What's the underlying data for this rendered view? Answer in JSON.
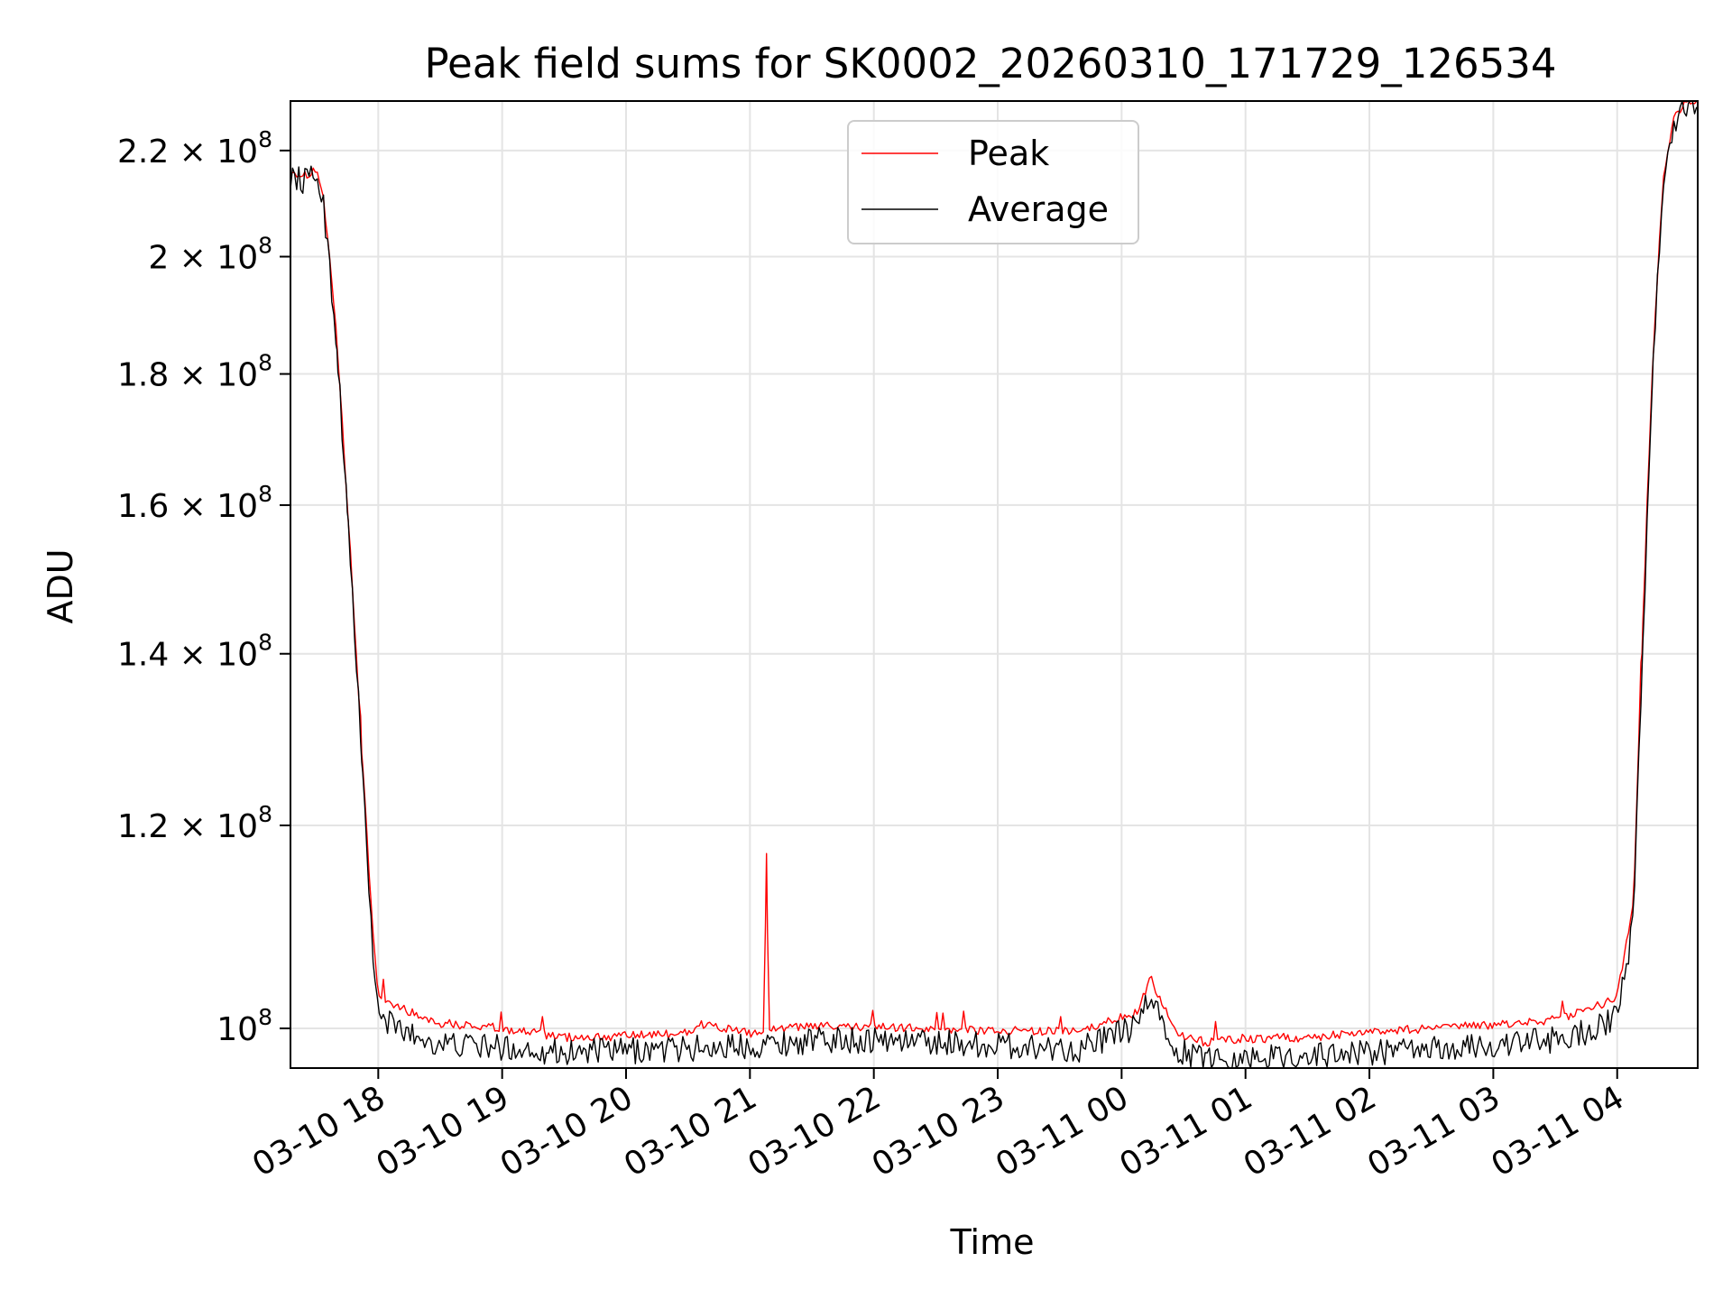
{
  "chart_data": {
    "type": "line",
    "title": "Peak field sums for SK0002_20260310_171729_126534",
    "xlabel": "Time",
    "ylabel": "ADU",
    "y_scale": "log",
    "ylim": [
      96500000,
      230000000
    ],
    "xlim": [
      "2026-03-10 17:17:29",
      "2026-03-11 04:39:00"
    ],
    "grid": true,
    "legend_position": "top-center",
    "x_ticks": [
      {
        "value": "2026-03-10 18:00",
        "label": "03-10 18"
      },
      {
        "value": "2026-03-10 19:00",
        "label": "03-10 19"
      },
      {
        "value": "2026-03-10 20:00",
        "label": "03-10 20"
      },
      {
        "value": "2026-03-10 21:00",
        "label": "03-10 21"
      },
      {
        "value": "2026-03-10 22:00",
        "label": "03-10 22"
      },
      {
        "value": "2026-03-10 23:00",
        "label": "03-10 23"
      },
      {
        "value": "2026-03-11 00:00",
        "label": "03-11 00"
      },
      {
        "value": "2026-03-11 01:00",
        "label": "03-11 01"
      },
      {
        "value": "2026-03-11 02:00",
        "label": "03-11 02"
      },
      {
        "value": "2026-03-11 03:00",
        "label": "03-11 03"
      },
      {
        "value": "2026-03-11 04:00",
        "label": "03-11 04"
      }
    ],
    "y_ticks": [
      {
        "value": 100000000,
        "mantissa": "",
        "exp": "8"
      },
      {
        "value": 120000000,
        "mantissa": "1.2",
        "exp": "8"
      },
      {
        "value": 140000000,
        "mantissa": "1.4",
        "exp": "8"
      },
      {
        "value": 160000000,
        "mantissa": "1.6",
        "exp": "8"
      },
      {
        "value": 180000000,
        "mantissa": "1.8",
        "exp": "8"
      },
      {
        "value": 200000000,
        "mantissa": "2",
        "exp": "8"
      },
      {
        "value": 220000000,
        "mantissa": "2.2",
        "exp": "8"
      }
    ],
    "series": [
      {
        "name": "Peak",
        "color": "#ff0000",
        "x": [
          "2026-03-10 17:17:29",
          "2026-03-10 17:25",
          "2026-03-10 17:30",
          "2026-03-10 17:33",
          "2026-03-10 17:35",
          "2026-03-10 17:40",
          "2026-03-10 17:45",
          "2026-03-10 17:52",
          "2026-03-10 17:57",
          "2026-03-10 18:00",
          "2026-03-10 18:15",
          "2026-03-10 18:30",
          "2026-03-10 19:00",
          "2026-03-10 19:30",
          "2026-03-10 20:00",
          "2026-03-10 20:30",
          "2026-03-10 20:37",
          "2026-03-10 21:00",
          "2026-03-10 21:07",
          "2026-03-10 21:08",
          "2026-03-10 21:09",
          "2026-03-10 21:30",
          "2026-03-10 22:00",
          "2026-03-10 22:30",
          "2026-03-10 23:00",
          "2026-03-10 23:40",
          "2026-03-11 00:08",
          "2026-03-11 00:14",
          "2026-03-11 00:20",
          "2026-03-11 00:28",
          "2026-03-11 00:40",
          "2026-03-11 01:00",
          "2026-03-11 01:30",
          "2026-03-11 02:00",
          "2026-03-11 02:30",
          "2026-03-11 03:00",
          "2026-03-11 03:30",
          "2026-03-11 03:50",
          "2026-03-11 04:00",
          "2026-03-11 04:08",
          "2026-03-11 04:12",
          "2026-03-11 04:17",
          "2026-03-11 04:22",
          "2026-03-11 04:27",
          "2026-03-11 04:32",
          "2026-03-11 04:39"
        ],
        "values": [
          216000000,
          215000000,
          216500000,
          212000000,
          205000000,
          185000000,
          160000000,
          128000000,
          110000000,
          103000000,
          101500000,
          100500000,
          100000000,
          99200000,
          99300000,
          99600000,
          100400000,
          99500000,
          99800000,
          117000000,
          99900000,
          100200000,
          100100000,
          100000000,
          99800000,
          99700000,
          101500000,
          104600000,
          102000000,
          99500000,
          98800000,
          99100000,
          99200000,
          99700000,
          100000000,
          100300000,
          100800000,
          102000000,
          103000000,
          112000000,
          140000000,
          180000000,
          213000000,
          226000000,
          229000000,
          230000000
        ]
      },
      {
        "name": "Average",
        "color": "#000000",
        "x": [
          "2026-03-10 17:17:29",
          "2026-03-10 17:25",
          "2026-03-10 17:30",
          "2026-03-10 17:33",
          "2026-03-10 17:35",
          "2026-03-10 17:40",
          "2026-03-10 17:45",
          "2026-03-10 17:52",
          "2026-03-10 17:57",
          "2026-03-10 18:00",
          "2026-03-10 18:15",
          "2026-03-10 18:30",
          "2026-03-10 19:00",
          "2026-03-10 19:30",
          "2026-03-10 20:00",
          "2026-03-10 20:30",
          "2026-03-10 21:00",
          "2026-03-10 21:30",
          "2026-03-10 22:00",
          "2026-03-10 22:30",
          "2026-03-10 23:00",
          "2026-03-10 23:40",
          "2026-03-11 00:08",
          "2026-03-11 00:14",
          "2026-03-11 00:20",
          "2026-03-11 00:28",
          "2026-03-11 00:40",
          "2026-03-11 01:00",
          "2026-03-11 01:30",
          "2026-03-11 02:00",
          "2026-03-11 02:30",
          "2026-03-11 03:00",
          "2026-03-11 03:30",
          "2026-03-11 03:50",
          "2026-03-11 04:00",
          "2026-03-11 04:08",
          "2026-03-11 04:12",
          "2026-03-11 04:17",
          "2026-03-11 04:22",
          "2026-03-11 04:27",
          "2026-03-11 04:32",
          "2026-03-11 04:39"
        ],
        "values": [
          215000000,
          214000000,
          215500000,
          211000000,
          204000000,
          184000000,
          159000000,
          127000000,
          108000000,
          101000000,
          99500000,
          98600000,
          98300000,
          97900000,
          98000000,
          98200000,
          98500000,
          98900000,
          99000000,
          98800000,
          98500000,
          98200000,
          100200000,
          103200000,
          100200000,
          97900000,
          97400000,
          97400000,
          97600000,
          97900000,
          98100000,
          98500000,
          99000000,
          100000000,
          101000000,
          110000000,
          138000000,
          178000000,
          212000000,
          225000000,
          229000000,
          230000000
        ]
      }
    ]
  }
}
